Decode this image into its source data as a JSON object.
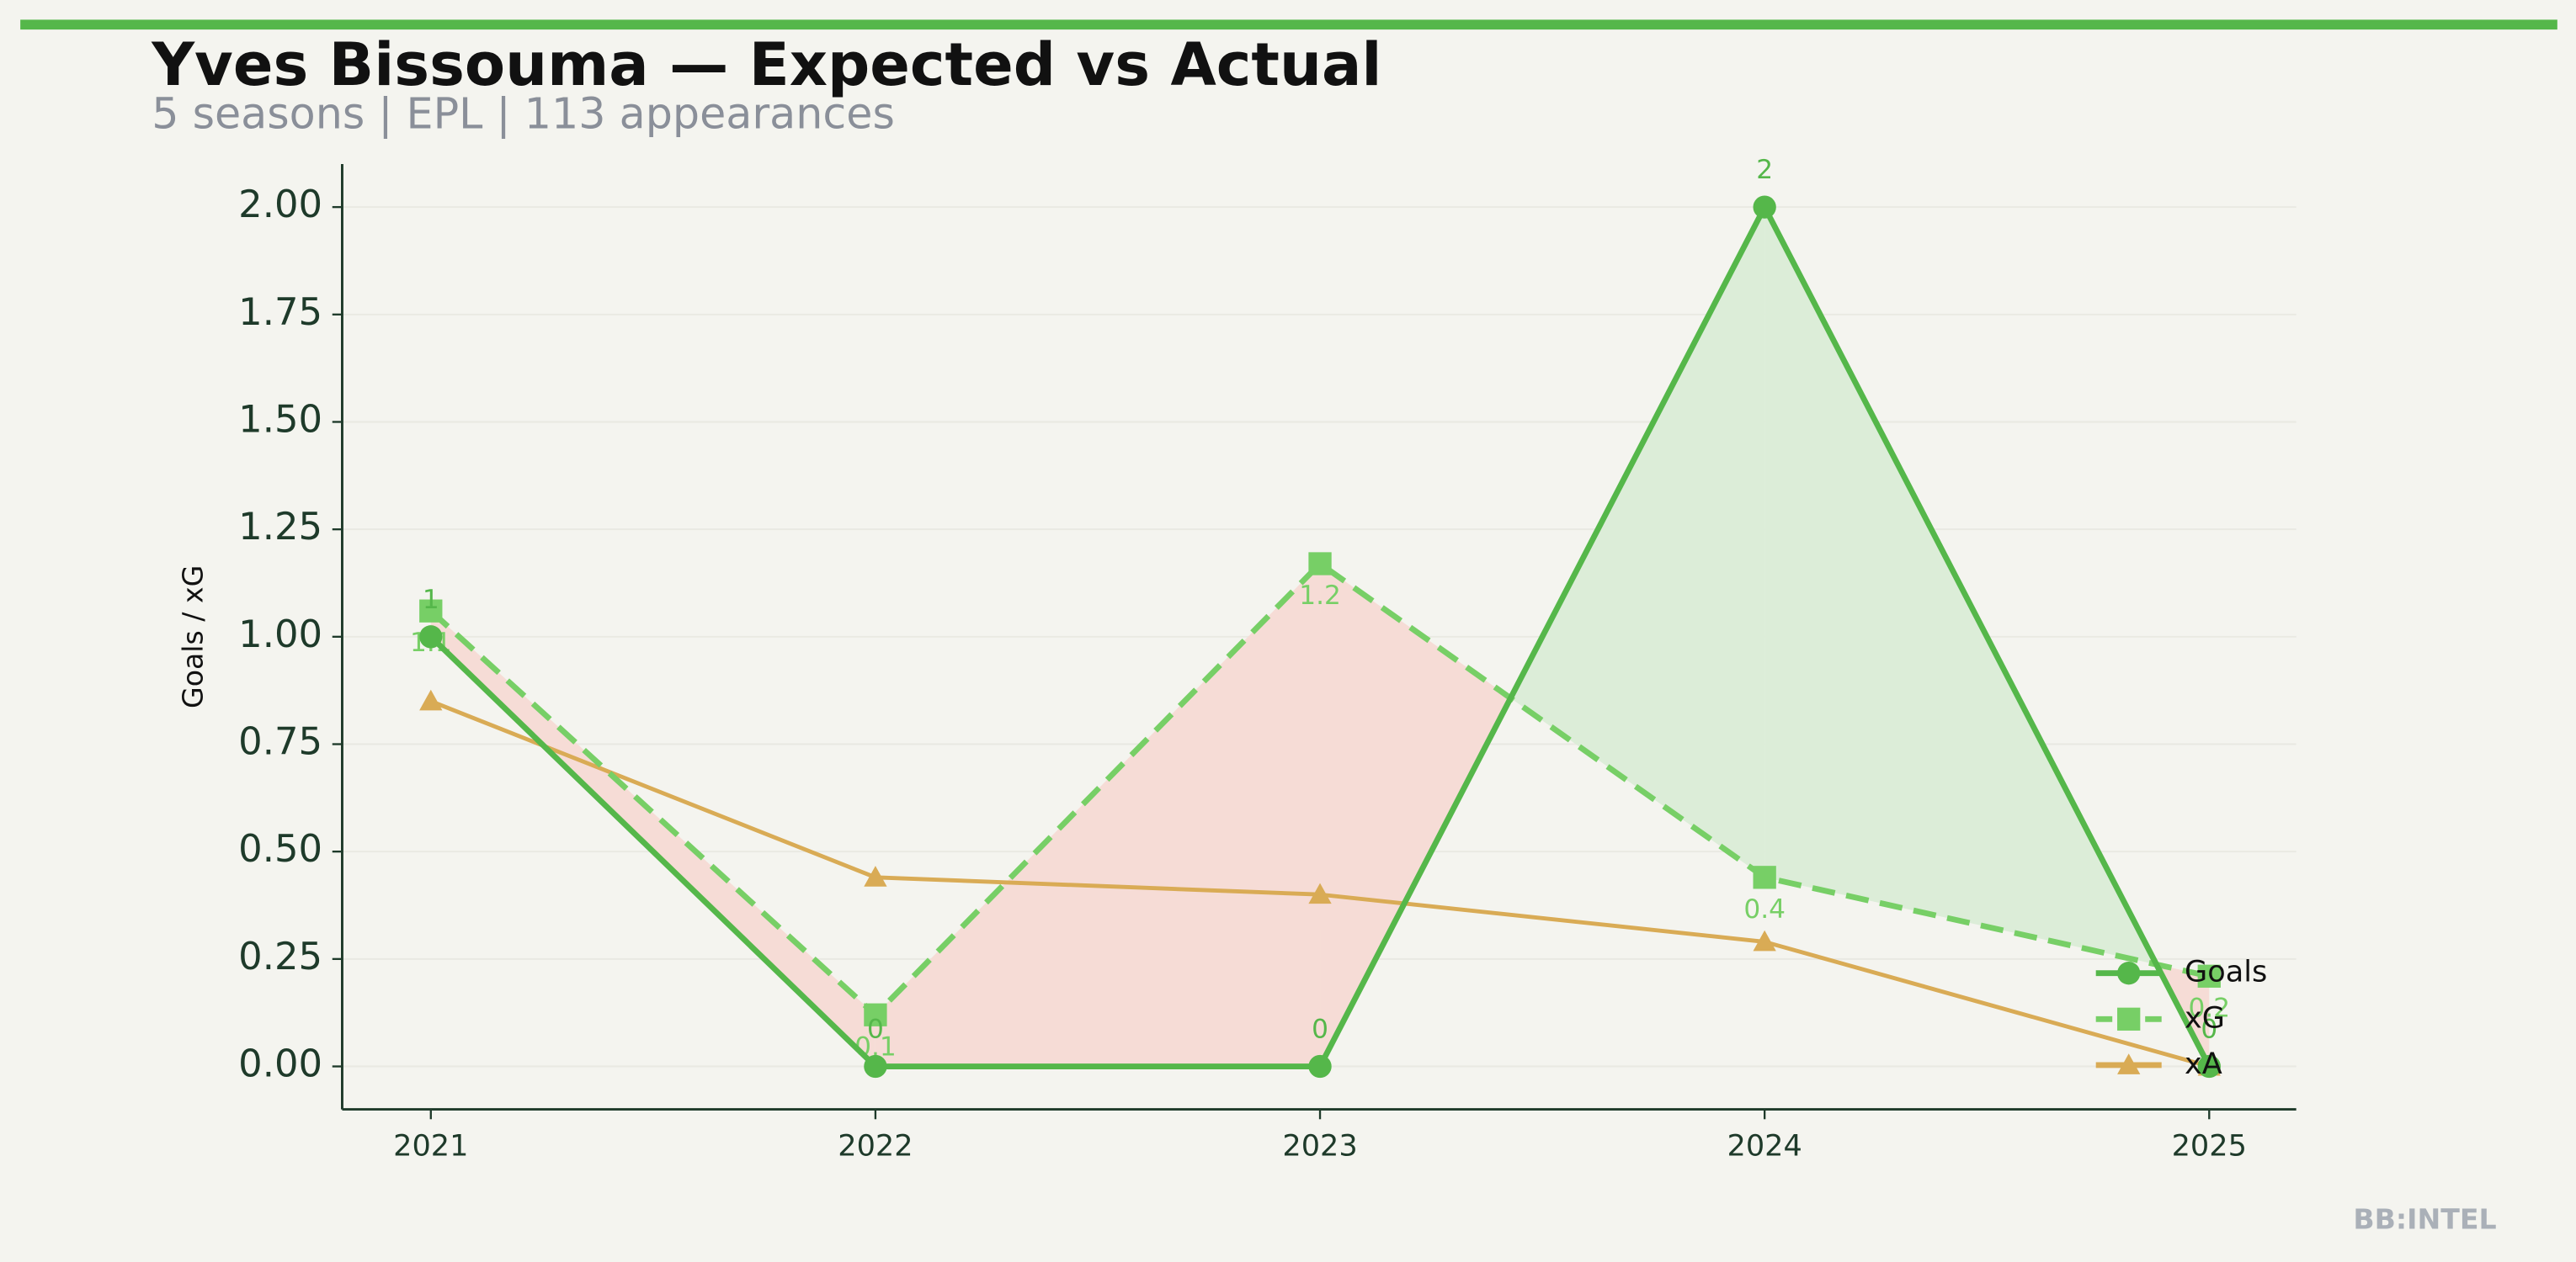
{
  "chart_data": {
    "type": "line",
    "title": "Yves Bissouma — Expected vs Actual",
    "subtitle": "5 seasons | EPL | 113 appearances",
    "y_label": "Goals / xG",
    "watermark": "BB:INTEL",
    "categories": [
      "2021",
      "2022",
      "2023",
      "2024",
      "2025"
    ],
    "series": [
      {
        "name": "Goals",
        "color": "#55b74a",
        "marker": "circle",
        "dash": false,
        "values": [
          1,
          0,
          0,
          2,
          0
        ],
        "show_labels": true
      },
      {
        "name": "xG",
        "color": "#77cf66",
        "marker": "square",
        "dash": true,
        "values": [
          1.06,
          0.12,
          1.17,
          0.44,
          0.21
        ],
        "value_labels": [
          "1.1",
          "0.1",
          "1.2",
          "0.4",
          "0.2"
        ],
        "show_labels": true
      },
      {
        "name": "xA",
        "color": "#d9ab55",
        "marker": "triangle",
        "dash": false,
        "values": [
          0.85,
          0.44,
          0.4,
          0.29,
          0.0
        ],
        "show_labels": false
      }
    ],
    "ylim": [
      -0.1,
      2.1
    ],
    "yticks": [
      {
        "value": 0,
        "label": "0.00"
      },
      {
        "value": 0.25,
        "label": "0.25"
      },
      {
        "value": 0.5,
        "label": "0.50"
      },
      {
        "value": 0.75,
        "label": "0.75"
      },
      {
        "value": 1,
        "label": "1.00"
      },
      {
        "value": 1.25,
        "label": "1.25"
      },
      {
        "value": 1.5,
        "label": "1.50"
      },
      {
        "value": 1.75,
        "label": "1.75"
      },
      {
        "value": 2,
        "label": "2.00"
      }
    ],
    "grid": true,
    "legend": "lower right"
  }
}
